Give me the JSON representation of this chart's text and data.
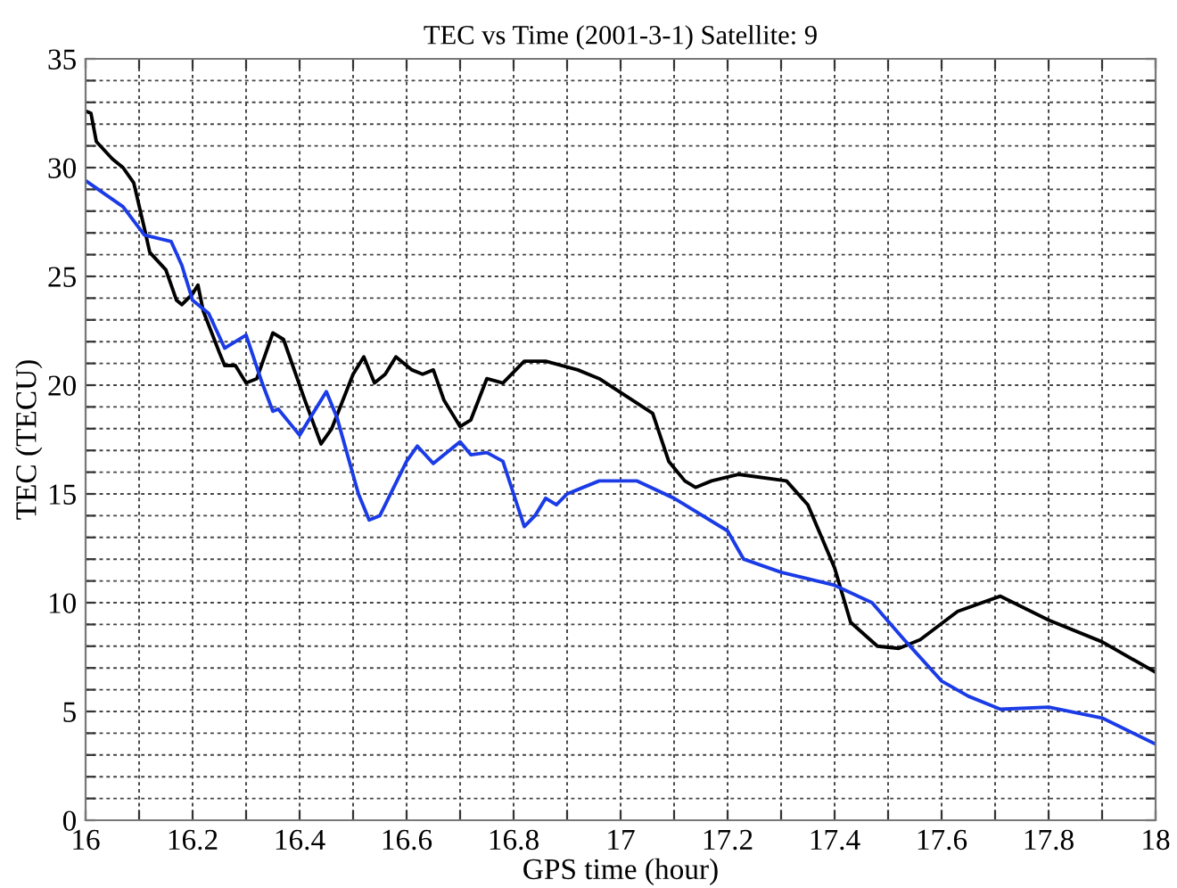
{
  "chart_data": {
    "type": "line",
    "title": "TEC vs Time (2001-3-1) Satellite: 9",
    "xlabel": "GPS time (hour)",
    "ylabel": "TEC (TECU)",
    "xlim": [
      16,
      18
    ],
    "ylim": [
      0,
      35
    ],
    "xticks": [
      16,
      {
        "value": 16.1,
        "label": null
      },
      16.2,
      {
        "value": 16.3,
        "label": null
      },
      16.4,
      {
        "value": 16.5,
        "label": null
      },
      16.6,
      {
        "value": 16.7,
        "label": null
      },
      16.8,
      {
        "value": 16.9,
        "label": null
      },
      17,
      {
        "value": 17.1,
        "label": null
      },
      17.2,
      {
        "value": 17.3,
        "label": null
      },
      17.4,
      {
        "value": 17.5,
        "label": null
      },
      17.6,
      {
        "value": 17.7,
        "label": null
      },
      17.8,
      {
        "value": 17.9,
        "label": null
      },
      18
    ],
    "yticks": [
      0,
      {
        "value": 1,
        "label": null
      },
      {
        "value": 2,
        "label": null
      },
      {
        "value": 3,
        "label": null
      },
      {
        "value": 4,
        "label": null
      },
      5,
      {
        "value": 6,
        "label": null
      },
      {
        "value": 7,
        "label": null
      },
      {
        "value": 8,
        "label": null
      },
      {
        "value": 9,
        "label": null
      },
      10,
      {
        "value": 11,
        "label": null
      },
      {
        "value": 12,
        "label": null
      },
      {
        "value": 13,
        "label": null
      },
      {
        "value": 14,
        "label": null
      },
      15,
      {
        "value": 16,
        "label": null
      },
      {
        "value": 17,
        "label": null
      },
      {
        "value": 18,
        "label": null
      },
      {
        "value": 19,
        "label": null
      },
      20,
      {
        "value": 21,
        "label": null
      },
      {
        "value": 22,
        "label": null
      },
      {
        "value": 23,
        "label": null
      },
      {
        "value": 24,
        "label": null
      },
      25,
      {
        "value": 26,
        "label": null
      },
      {
        "value": 27,
        "label": null
      },
      {
        "value": 28,
        "label": null
      },
      {
        "value": 29,
        "label": null
      },
      30,
      {
        "value": 31,
        "label": null
      },
      {
        "value": 32,
        "label": null
      },
      {
        "value": 33,
        "label": null
      },
      {
        "value": 34,
        "label": null
      },
      35
    ],
    "grid": true,
    "line_style": "solid",
    "marker": "none",
    "series": [
      {
        "color": "#000000",
        "x": [
          16.0,
          16.01,
          16.02,
          16.05,
          16.07,
          16.09,
          16.11,
          16.12,
          16.15,
          16.17,
          16.18,
          16.2,
          16.21,
          16.22,
          16.25,
          16.26,
          16.28,
          16.3,
          16.32,
          16.34,
          16.35,
          16.37,
          16.41,
          16.44,
          16.46,
          16.5,
          16.52,
          16.54,
          16.56,
          16.58,
          16.61,
          16.63,
          16.65,
          16.67,
          16.7,
          16.72,
          16.75,
          16.78,
          16.82,
          16.86,
          16.92,
          16.96,
          17.01,
          17.06,
          17.09,
          17.12,
          17.14,
          17.17,
          17.22,
          17.31,
          17.35,
          17.4,
          17.43,
          17.48,
          17.52,
          17.56,
          17.63,
          17.71,
          17.8,
          17.9,
          18.0
        ],
        "values": [
          32.6,
          32.5,
          31.2,
          30.4,
          30.0,
          29.3,
          27.2,
          26.1,
          25.3,
          23.9,
          23.7,
          24.2,
          24.6,
          23.4,
          21.5,
          20.9,
          20.9,
          20.1,
          20.3,
          21.7,
          22.4,
          22.1,
          19.3,
          17.3,
          18.0,
          20.5,
          21.3,
          20.1,
          20.5,
          21.3,
          20.7,
          20.5,
          20.7,
          19.3,
          18.1,
          18.4,
          20.3,
          20.1,
          21.1,
          21.1,
          20.7,
          20.3,
          19.5,
          18.7,
          16.5,
          15.6,
          15.3,
          15.6,
          15.9,
          15.6,
          14.5,
          11.6,
          9.1,
          8.0,
          7.9,
          8.3,
          9.6,
          10.3,
          9.2,
          8.2,
          6.8
        ]
      },
      {
        "color": "#1a3be6",
        "x": [
          16.0,
          16.07,
          16.11,
          16.16,
          16.18,
          16.2,
          16.23,
          16.26,
          16.3,
          16.33,
          16.35,
          16.36,
          16.4,
          16.42,
          16.45,
          16.47,
          16.51,
          16.53,
          16.55,
          16.6,
          16.62,
          16.65,
          16.68,
          16.7,
          16.72,
          16.75,
          16.78,
          16.8,
          16.82,
          16.84,
          16.86,
          16.88,
          16.9,
          16.92,
          16.96,
          17.03,
          17.1,
          17.2,
          17.23,
          17.3,
          17.4,
          17.47,
          17.53,
          17.6,
          17.65,
          17.71,
          17.8,
          17.9,
          18.0
        ],
        "values": [
          29.4,
          28.2,
          26.9,
          26.6,
          25.5,
          23.9,
          23.3,
          21.7,
          22.3,
          20.1,
          18.8,
          18.9,
          17.7,
          18.5,
          19.7,
          18.5,
          15.0,
          13.8,
          14.0,
          16.5,
          17.2,
          16.4,
          17.0,
          17.4,
          16.8,
          16.9,
          16.5,
          15.0,
          13.5,
          14.0,
          14.8,
          14.5,
          15.0,
          15.2,
          15.6,
          15.6,
          14.8,
          13.3,
          12.0,
          11.4,
          10.8,
          10.0,
          8.3,
          6.4,
          5.7,
          5.1,
          5.2,
          4.7,
          3.5
        ]
      }
    ]
  }
}
